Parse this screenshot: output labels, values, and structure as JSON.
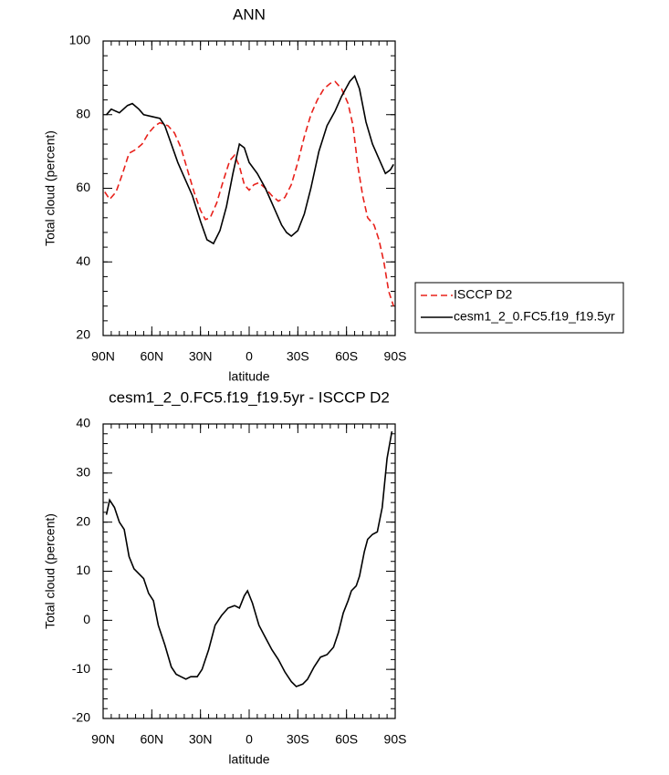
{
  "chart_data": [
    {
      "type": "line",
      "title": "ANN",
      "xlabel": "latitude",
      "ylabel": "Total cloud (percent)",
      "xlim": [
        90,
        -90
      ],
      "xticks": [
        {
          "value": 90,
          "label": "90N"
        },
        {
          "value": 60,
          "label": "60N"
        },
        {
          "value": 30,
          "label": "30N"
        },
        0,
        {
          "value": -30,
          "label": "30S"
        },
        {
          "value": -60,
          "label": "60S"
        },
        {
          "value": -90,
          "label": "90S"
        }
      ],
      "ylim": [
        20,
        100
      ],
      "yticks": [
        20,
        40,
        60,
        80,
        100
      ],
      "legend": "right",
      "series": [
        {
          "name": "ISCCP D2",
          "color": "#e8201a",
          "line_style": "dashed",
          "x": [
            89,
            86,
            82,
            78,
            74,
            70,
            66,
            62,
            58,
            55,
            50,
            46,
            42,
            38,
            34,
            30,
            27,
            24,
            20,
            16,
            12,
            9,
            6,
            3,
            0,
            -3,
            -6,
            -10,
            -14,
            -18,
            -22,
            -26,
            -30,
            -34,
            -38,
            -42,
            -46,
            -50,
            -53,
            -57,
            -61,
            -64,
            -67,
            -70,
            -73,
            -77,
            -80,
            -83,
            -86,
            -89
          ],
          "values": [
            59,
            57,
            59,
            64,
            69.5,
            70.5,
            72,
            75,
            77,
            77.8,
            77,
            75,
            71,
            65,
            59,
            54,
            51.5,
            52,
            56,
            62,
            67.5,
            69,
            66,
            61,
            59.5,
            61,
            61.5,
            60,
            58,
            56.5,
            57.5,
            61,
            67,
            74,
            80,
            84,
            87,
            88.5,
            89,
            87,
            83,
            77,
            66,
            58,
            52,
            50,
            46,
            40,
            32,
            28
          ]
        },
        {
          "name": "cesm1_2_0.FC5.f19_f19.5yr",
          "color": "#000000",
          "line_style": "solid",
          "x": [
            88,
            85,
            80,
            75,
            72,
            68,
            65,
            60,
            55,
            52,
            48,
            44,
            40,
            35,
            30,
            26,
            22,
            18,
            14,
            10,
            6,
            3,
            0,
            -5,
            -10,
            -15,
            -20,
            -23,
            -26,
            -30,
            -34,
            -38,
            -43,
            -48,
            -53,
            -57,
            -62,
            -65,
            -68,
            -72,
            -76,
            -80,
            -84,
            -87,
            -89
          ],
          "values": [
            80,
            81.5,
            80.5,
            82.5,
            83,
            81.5,
            80,
            79.5,
            79,
            77,
            72,
            67,
            63,
            58,
            51,
            46,
            45,
            48.5,
            55,
            64,
            72,
            71,
            67,
            64,
            60,
            55,
            50,
            48,
            47,
            48.5,
            53,
            60,
            70,
            77,
            81,
            85,
            89,
            90.5,
            87,
            78,
            72,
            68,
            64,
            65,
            66.5
          ]
        }
      ]
    },
    {
      "type": "line",
      "title": "cesm1_2_0.FC5.f19_f19.5yr - ISCCP D2",
      "xlabel": "latitude",
      "ylabel": "Total cloud (percent)",
      "xlim": [
        90,
        -90
      ],
      "xticks": [
        {
          "value": 90,
          "label": "90N"
        },
        {
          "value": 60,
          "label": "60N"
        },
        {
          "value": 30,
          "label": "30N"
        },
        0,
        {
          "value": -30,
          "label": "30S"
        },
        {
          "value": -60,
          "label": "60S"
        },
        {
          "value": -90,
          "label": "90S"
        }
      ],
      "ylim": [
        -20,
        40
      ],
      "yticks": [
        -20,
        -10,
        0,
        10,
        20,
        30,
        40
      ],
      "series": [
        {
          "color": "#000000",
          "line_style": "solid",
          "x": [
            88,
            86,
            83,
            80,
            77,
            74,
            71,
            68,
            65,
            62,
            59,
            56,
            52,
            48,
            45,
            42,
            39,
            36,
            32,
            29,
            25,
            21,
            17,
            13,
            9,
            6,
            3,
            1,
            -2,
            -6,
            -10,
            -14,
            -18,
            -22,
            -26,
            -29,
            -33,
            -36,
            -40,
            -44,
            -48,
            -52,
            -55,
            -58,
            -61,
            -63,
            -66,
            -68,
            -71,
            -73,
            -76,
            -79,
            -82,
            -85,
            -88
          ],
          "values": [
            21.5,
            24.5,
            23,
            20,
            18.5,
            13,
            10.5,
            9.5,
            8.5,
            5.5,
            4,
            -1,
            -5,
            -9.5,
            -11,
            -11.5,
            -12,
            -11.5,
            -11.5,
            -10,
            -6,
            -1,
            1,
            2.5,
            3,
            2.5,
            5,
            6,
            3.5,
            -1,
            -3.5,
            -6,
            -8,
            -10.5,
            -12.5,
            -13.5,
            -13,
            -12,
            -9.5,
            -7.5,
            -7,
            -5.5,
            -2.5,
            1.5,
            4,
            6,
            7,
            9,
            14,
            16.5,
            17.5,
            18,
            23,
            33,
            38.5
          ]
        }
      ]
    }
  ]
}
